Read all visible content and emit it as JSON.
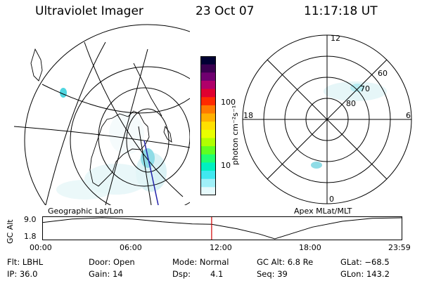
{
  "header": {
    "instrument": "Ultraviolet Imager",
    "date": "23 Oct 07",
    "time": "11:17:18 UT"
  },
  "left_map": {
    "label": "Geographic Lat/Lon"
  },
  "right_map": {
    "label": "Apex MLat/MLT",
    "mlt_labels": {
      "top": "12",
      "left": "18",
      "right": "6",
      "bottom": "0"
    },
    "lat_labels": [
      "60",
      "70",
      "80"
    ]
  },
  "colorbar": {
    "unit": "photon cm⁻²s⁻¹",
    "ticks": [
      "100",
      "10"
    ],
    "colors": [
      "#000033",
      "#3a0050",
      "#700070",
      "#b0006a",
      "#e00030",
      "#ff2a00",
      "#ff7a00",
      "#ffb000",
      "#ffe000",
      "#e8ff00",
      "#b0ff00",
      "#60ff20",
      "#20ff70",
      "#00f0c0",
      "#40e8f0",
      "#a0f0f8",
      "#e6fafc"
    ]
  },
  "altitude_plot": {
    "ylabel": "GC Alt",
    "y_ticks": [
      "9.0",
      "1.8"
    ],
    "x_ticks": [
      "00:00",
      "06:00",
      "12:00",
      "18:00",
      "23:59"
    ],
    "current_hour": 11.29,
    "curve_hours": [
      0,
      2,
      4,
      6,
      8,
      10,
      11.29,
      13,
      14.5,
      15.5,
      16.5,
      18,
      20,
      22,
      23.99
    ],
    "curve_values": [
      7.4,
      8.6,
      9.0,
      8.6,
      7.6,
      6.9,
      6.8,
      5.2,
      3.4,
      1.8,
      3.4,
      5.8,
      7.8,
      8.8,
      9.0
    ]
  },
  "status": {
    "filter": "Flt: LBHL",
    "ip": "IP: 36.0",
    "door": "Door: Open",
    "gain": "Gain: 14",
    "mode": "Mode: Normal",
    "dsp_label": "Dsp:",
    "dsp_value": "4.1",
    "gc_alt": "GC Alt: 6.8 Re",
    "seq": "Seq: 39",
    "glat": "GLat: −68.5",
    "glon": "GLon: 143.2"
  }
}
